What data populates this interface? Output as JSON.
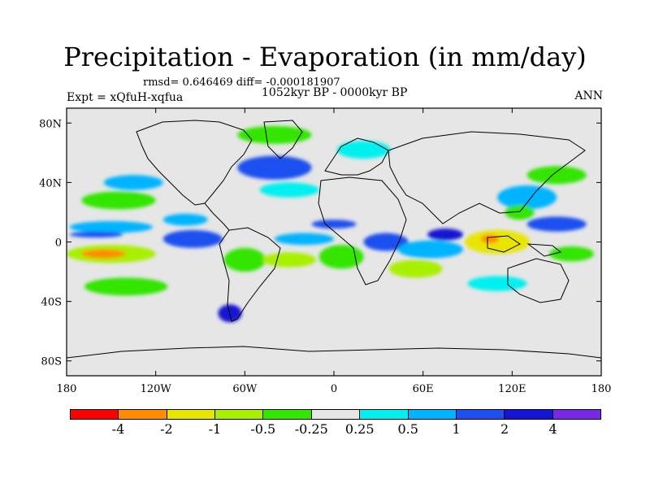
{
  "title": "Precipitation - Evaporation (in mm/day)",
  "stats_line": "rmsd= 0.646469 diff= -0.000181907",
  "period_line": "1052kyr BP - 0000kyr BP",
  "experiment_label": "Expt = xQfuH-xqfua",
  "season_label": "ANN",
  "axes": {
    "x_ticks": [
      {
        "label": "180",
        "lon": -180
      },
      {
        "label": "120W",
        "lon": -120
      },
      {
        "label": "60W",
        "lon": -60
      },
      {
        "label": "0",
        "lon": 0
      },
      {
        "label": "60E",
        "lon": 60
      },
      {
        "label": "120E",
        "lon": 120
      },
      {
        "label": "180",
        "lon": 180
      }
    ],
    "y_ticks": [
      {
        "label": "80N",
        "lat": 80
      },
      {
        "label": "40N",
        "lat": 40
      },
      {
        "label": "0",
        "lat": 0
      },
      {
        "label": "40S",
        "lat": -40
      },
      {
        "label": "80S",
        "lat": -80
      }
    ],
    "lon_range": [
      -180,
      180
    ],
    "lat_range": [
      -90,
      90
    ]
  },
  "colorbar": {
    "colors": [
      "#ff0000",
      "#ff8c00",
      "#e8e600",
      "#a8f000",
      "#32e600",
      "#e6e6e6",
      "#00f0f0",
      "#00b4ff",
      "#1e50f0",
      "#1414d2",
      "#7828e6"
    ],
    "labels": [
      "-4",
      "-2",
      "-1",
      "-0.5",
      "-0.25",
      "0.25",
      "0.5",
      "1",
      "2",
      "4"
    ]
  },
  "map": {
    "ocean_background": "#e6e6e6",
    "field_blobs": [
      {
        "lon": -150,
        "lat": 10,
        "rx": 28,
        "ry": 4,
        "color": "#00b4ff"
      },
      {
        "lon": -160,
        "lat": 5,
        "rx": 18,
        "ry": 2,
        "color": "#1e50f0"
      },
      {
        "lon": -145,
        "lat": 28,
        "rx": 25,
        "ry": 6,
        "color": "#32e600"
      },
      {
        "lon": -135,
        "lat": 40,
        "rx": 20,
        "ry": 5,
        "color": "#00b4ff"
      },
      {
        "lon": -150,
        "lat": -8,
        "rx": 30,
        "ry": 6,
        "color": "#a8f000"
      },
      {
        "lon": -155,
        "lat": -8,
        "rx": 15,
        "ry": 3,
        "color": "#ff8c00"
      },
      {
        "lon": -140,
        "lat": -30,
        "rx": 28,
        "ry": 6,
        "color": "#32e600"
      },
      {
        "lon": -95,
        "lat": 2,
        "rx": 20,
        "ry": 6,
        "color": "#1e50f0"
      },
      {
        "lon": -100,
        "lat": 15,
        "rx": 15,
        "ry": 4,
        "color": "#00b4ff"
      },
      {
        "lon": -60,
        "lat": -12,
        "rx": 14,
        "ry": 8,
        "color": "#32e600"
      },
      {
        "lon": -70,
        "lat": -48,
        "rx": 8,
        "ry": 6,
        "color": "#1414d2"
      },
      {
        "lon": -40,
        "lat": 50,
        "rx": 25,
        "ry": 8,
        "color": "#1e50f0"
      },
      {
        "lon": -30,
        "lat": 35,
        "rx": 20,
        "ry": 5,
        "color": "#00f0f0"
      },
      {
        "lon": -40,
        "lat": 72,
        "rx": 25,
        "ry": 6,
        "color": "#32e600"
      },
      {
        "lon": -20,
        "lat": 2,
        "rx": 20,
        "ry": 4,
        "color": "#00b4ff"
      },
      {
        "lon": -30,
        "lat": -12,
        "rx": 18,
        "ry": 5,
        "color": "#a8f000"
      },
      {
        "lon": 5,
        "lat": -10,
        "rx": 15,
        "ry": 8,
        "color": "#32e600"
      },
      {
        "lon": 20,
        "lat": 62,
        "rx": 18,
        "ry": 6,
        "color": "#00f0f0"
      },
      {
        "lon": 35,
        "lat": 0,
        "rx": 15,
        "ry": 6,
        "color": "#1e50f0"
      },
      {
        "lon": 65,
        "lat": -5,
        "rx": 22,
        "ry": 6,
        "color": "#00b4ff"
      },
      {
        "lon": 75,
        "lat": 5,
        "rx": 12,
        "ry": 4,
        "color": "#1414d2"
      },
      {
        "lon": 55,
        "lat": -18,
        "rx": 18,
        "ry": 6,
        "color": "#a8f000"
      },
      {
        "lon": 110,
        "lat": 0,
        "rx": 22,
        "ry": 8,
        "color": "#e8e600"
      },
      {
        "lon": 105,
        "lat": 2,
        "rx": 6,
        "ry": 3,
        "color": "#ff8c00"
      },
      {
        "lon": 130,
        "lat": 30,
        "rx": 20,
        "ry": 8,
        "color": "#00b4ff"
      },
      {
        "lon": 125,
        "lat": 20,
        "rx": 10,
        "ry": 5,
        "color": "#32e600"
      },
      {
        "lon": 150,
        "lat": 12,
        "rx": 20,
        "ry": 5,
        "color": "#1e50f0"
      },
      {
        "lon": 160,
        "lat": -8,
        "rx": 15,
        "ry": 5,
        "color": "#32e600"
      },
      {
        "lon": 110,
        "lat": -28,
        "rx": 20,
        "ry": 5,
        "color": "#00f0f0"
      },
      {
        "lon": 0,
        "lat": 12,
        "rx": 15,
        "ry": 3,
        "color": "#1e50f0"
      },
      {
        "lon": 150,
        "lat": 45,
        "rx": 20,
        "ry": 6,
        "color": "#32e600"
      }
    ]
  }
}
